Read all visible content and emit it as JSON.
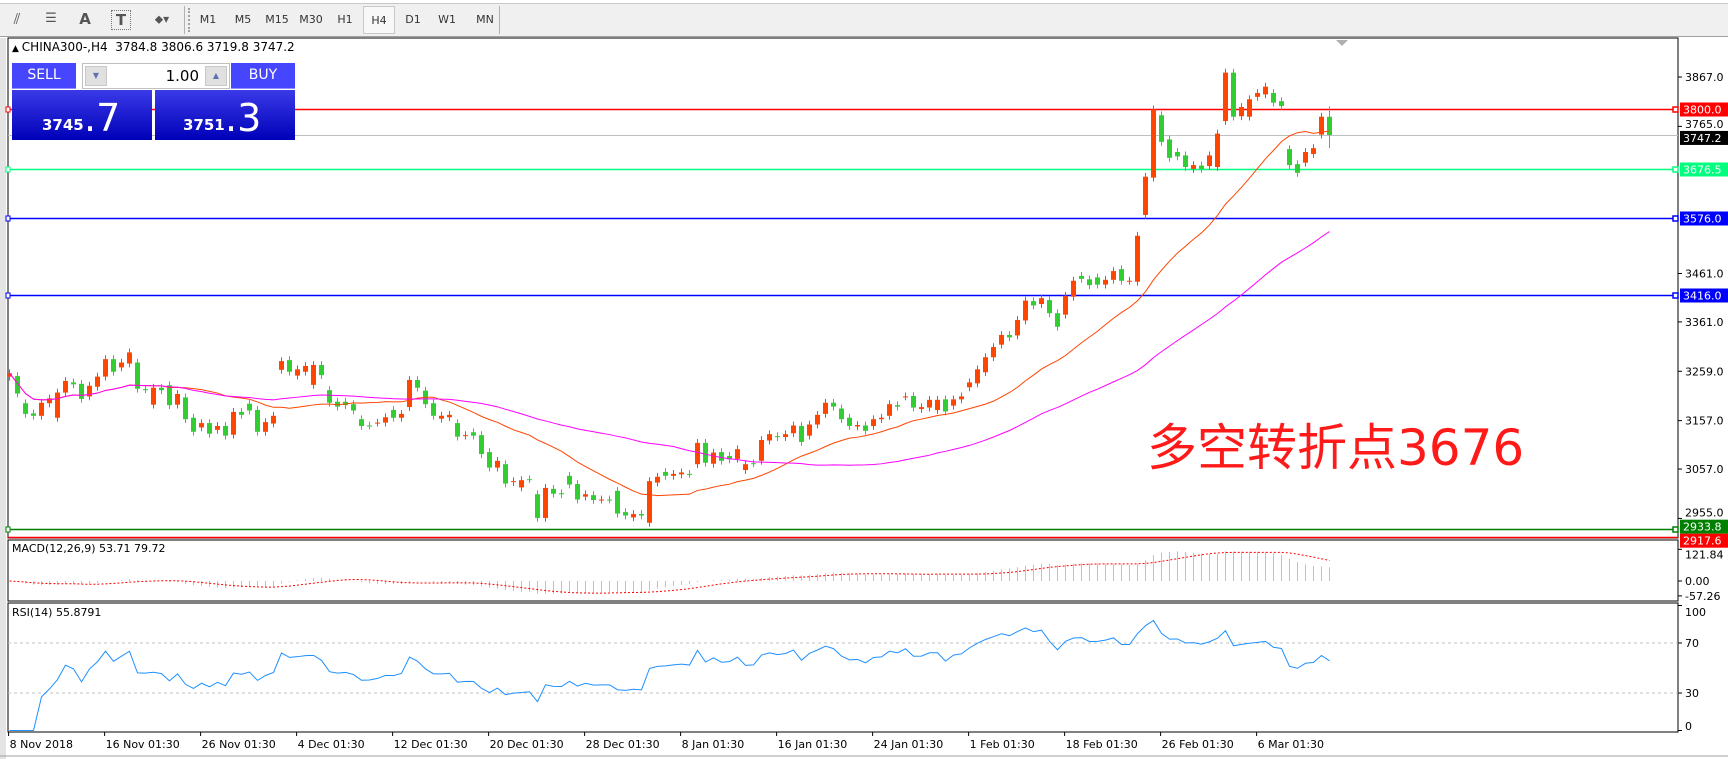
{
  "toolbar": {
    "tools": [
      {
        "icon": "fibonacci-fan-icon",
        "glyph": "⫽"
      },
      {
        "icon": "fibonacci-retracement-icon",
        "glyph": "☰"
      },
      {
        "icon": "text-icon",
        "glyph": "A"
      },
      {
        "icon": "text-label-icon",
        "glyph": "T"
      },
      {
        "icon": "arrows-dropdown-icon",
        "glyph": "⬥▾"
      }
    ],
    "timeframes": [
      "M1",
      "M5",
      "M15",
      "M30",
      "H1",
      "H4",
      "D1",
      "W1",
      "MN"
    ],
    "active_timeframe": "H4"
  },
  "header": {
    "symbol": "CHINA300-,H4",
    "ohlc": "3784.8 3806.6 3719.8 3747.2"
  },
  "trade_panel": {
    "sell_label": "SELL",
    "buy_label": "BUY",
    "lot": "1.00",
    "sell_main": "3745",
    "sell_frac": ".7",
    "buy_main": "3751",
    "buy_frac": ".3"
  },
  "annotation": "多空转折点3676",
  "colors": {
    "bull_candle": "#ff4500",
    "bear_candle": "#32cd32",
    "ma_fast": "#ff4500",
    "ma_slow": "#ff00ff",
    "macd_hist": "#c0c0c0",
    "macd_signal": "#ff0000",
    "rsi_line": "#1e90ff"
  },
  "chart_data": {
    "type": "candlestick",
    "symbol": "CHINA300-",
    "timeframe": "H4",
    "ylim": [
      2917,
      3943
    ],
    "price_ticks": [
      "3867.0",
      "3765.0",
      "3461.0",
      "3361.0",
      "3259.0",
      "3157.0",
      "3057.0",
      "2955.0"
    ],
    "time_labels": [
      "8 Nov 2018",
      "16 Nov 01:30",
      "26 Nov 01:30",
      "4 Dec 01:30",
      "12 Dec 01:30",
      "20 Dec 01:30",
      "28 Dec 01:30",
      "8 Jan 01:30",
      "16 Jan 01:30",
      "24 Jan 01:30",
      "1 Feb 01:30",
      "18 Feb 01:30",
      "26 Feb 01:30",
      "6 Mar 01:30"
    ],
    "levels": [
      {
        "price": 3800.0,
        "label": "3800.0",
        "color": "#ff0000",
        "text_color": "#ffffff"
      },
      {
        "price": 3747.2,
        "label": "3747.2",
        "color": "#c0c0c0",
        "label_bg": "#000000",
        "text_color": "#ffffff"
      },
      {
        "price": 3676.5,
        "label": "3676.5",
        "color": "#00ff7f",
        "text_color": "#ffffff"
      },
      {
        "price": 3576.0,
        "label": "3576.0",
        "color": "#0000ff",
        "text_color": "#ffffff"
      },
      {
        "price": 3416.0,
        "label": "3416.0",
        "color": "#0000ff",
        "text_color": "#ffffff"
      },
      {
        "price": 2933.8,
        "label": "2933.8",
        "color": "#008000",
        "text_color": "#ffffff"
      },
      {
        "price": 2917.6,
        "label": "2917.6",
        "color": "#ff0000",
        "text_color": "#ffffff"
      }
    ],
    "candles_open_close": [
      [
        3248,
        3255
      ],
      [
        3249,
        3213
      ],
      [
        3193,
        3171
      ],
      [
        3172,
        3167
      ],
      [
        3167,
        3194
      ],
      [
        3193,
        3203
      ],
      [
        3163,
        3215
      ],
      [
        3215,
        3239
      ],
      [
        3236,
        3232
      ],
      [
        3233,
        3202
      ],
      [
        3207,
        3229
      ],
      [
        3227,
        3248
      ],
      [
        3248,
        3284
      ],
      [
        3284,
        3258
      ],
      [
        3267,
        3277
      ],
      [
        3275,
        3298
      ],
      [
        3277,
        3223
      ],
      [
        3222,
        3222
      ],
      [
        3190,
        3225
      ],
      [
        3225,
        3220
      ],
      [
        3230,
        3189
      ],
      [
        3190,
        3212
      ],
      [
        3205,
        3160
      ],
      [
        3163,
        3134
      ],
      [
        3143,
        3152
      ],
      [
        3152,
        3130
      ],
      [
        3138,
        3146
      ],
      [
        3146,
        3126
      ],
      [
        3128,
        3175
      ],
      [
        3175,
        3169
      ],
      [
        3192,
        3178
      ],
      [
        3179,
        3134
      ],
      [
        3134,
        3154
      ],
      [
        3151,
        3167
      ],
      [
        3262,
        3280
      ],
      [
        3282,
        3258
      ],
      [
        3250,
        3263
      ],
      [
        3258,
        3270
      ],
      [
        3231,
        3272
      ],
      [
        3272,
        3251
      ],
      [
        3220,
        3194
      ],
      [
        3196,
        3186
      ],
      [
        3196,
        3189
      ],
      [
        3191,
        3178
      ],
      [
        3160,
        3146
      ],
      [
        3147,
        3147
      ],
      [
        3153,
        3153
      ],
      [
        3153,
        3164
      ],
      [
        3179,
        3163
      ],
      [
        3163,
        3171
      ],
      [
        3185,
        3241
      ],
      [
        3241,
        3225
      ],
      [
        3219,
        3191
      ],
      [
        3193,
        3167
      ],
      [
        3161,
        3167
      ],
      [
        3164,
        3169
      ],
      [
        3152,
        3124
      ],
      [
        3126,
        3127
      ],
      [
        3133,
        3126
      ],
      [
        3127,
        3088
      ],
      [
        3092,
        3060
      ],
      [
        3060,
        3074
      ],
      [
        3067,
        3027
      ],
      [
        3030,
        3032
      ],
      [
        3019,
        3034
      ],
      [
        3036,
        3036
      ],
      [
        3005,
        2956
      ],
      [
        2956,
        3018
      ],
      [
        3016,
        3006
      ],
      [
        3007,
        3005
      ],
      [
        3043,
        3025
      ],
      [
        3026,
        2994
      ],
      [
        3000,
        3005
      ],
      [
        3003,
        2993
      ],
      [
        2994,
        2994
      ],
      [
        2994,
        2994
      ],
      [
        3012,
        2965
      ],
      [
        2968,
        2961
      ],
      [
        2957,
        2964
      ],
      [
        2964,
        2961
      ],
      [
        2946,
        3032
      ],
      [
        3029,
        3041
      ],
      [
        3051,
        3043
      ],
      [
        3043,
        3047
      ],
      [
        3046,
        3050
      ],
      [
        3047,
        3047
      ],
      [
        3067,
        3111
      ],
      [
        3111,
        3070
      ],
      [
        3068,
        3091
      ],
      [
        3092,
        3074
      ],
      [
        3084,
        3077
      ],
      [
        3078,
        3098
      ],
      [
        3055,
        3067
      ],
      [
        3069,
        3069
      ],
      [
        3074,
        3117
      ],
      [
        3116,
        3129
      ],
      [
        3125,
        3123
      ],
      [
        3123,
        3129
      ],
      [
        3131,
        3147
      ],
      [
        3146,
        3113
      ],
      [
        3126,
        3149
      ],
      [
        3149,
        3169
      ],
      [
        3171,
        3194
      ],
      [
        3194,
        3186
      ],
      [
        3182,
        3160
      ],
      [
        3163,
        3146
      ],
      [
        3145,
        3148
      ],
      [
        3147,
        3136
      ],
      [
        3146,
        3160
      ],
      [
        3160,
        3163
      ],
      [
        3167,
        3191
      ],
      [
        3189,
        3186
      ],
      [
        3207,
        3207
      ],
      [
        3208,
        3184
      ],
      [
        3181,
        3185
      ],
      [
        3184,
        3200
      ],
      [
        3179,
        3200
      ],
      [
        3201,
        3176
      ],
      [
        3188,
        3201
      ],
      [
        3201,
        3207
      ],
      [
        3226,
        3236
      ],
      [
        3234,
        3263
      ],
      [
        3257,
        3288
      ],
      [
        3288,
        3309
      ],
      [
        3314,
        3334
      ],
      [
        3334,
        3329
      ],
      [
        3333,
        3365
      ],
      [
        3364,
        3405
      ],
      [
        3404,
        3395
      ],
      [
        3398,
        3410
      ],
      [
        3406,
        3379
      ],
      [
        3379,
        3351
      ],
      [
        3376,
        3415
      ],
      [
        3413,
        3446
      ],
      [
        3456,
        3450
      ],
      [
        3449,
        3437
      ],
      [
        3453,
        3438
      ],
      [
        3438,
        3448
      ],
      [
        3448,
        3466
      ],
      [
        3470,
        3446
      ],
      [
        3446,
        3446
      ],
      [
        3444,
        3539
      ],
      [
        3582,
        3661
      ],
      [
        3659,
        3800
      ],
      [
        3788,
        3733
      ],
      [
        3738,
        3700
      ],
      [
        3712,
        3703
      ],
      [
        3705,
        3681
      ],
      [
        3677,
        3685
      ],
      [
        3684,
        3677
      ],
      [
        3683,
        3705
      ],
      [
        3681,
        3750
      ],
      [
        3776,
        3876
      ],
      [
        3876,
        3785
      ],
      [
        3786,
        3805
      ],
      [
        3785,
        3821
      ],
      [
        3826,
        3834
      ],
      [
        3831,
        3847
      ],
      [
        3834,
        3814
      ],
      [
        3817,
        3807
      ],
      [
        3718,
        3685
      ],
      [
        3687,
        3669
      ],
      [
        3690,
        3712
      ],
      [
        3708,
        3720
      ],
      [
        3748,
        3785
      ],
      [
        3784.8,
        3747.2
      ]
    ],
    "last_candle": {
      "open": 3784.8,
      "high": 3806.6,
      "low": 3719.8,
      "close": 3747.2
    },
    "macd": {
      "label": "MACD(12,26,9) 53.71 79.72",
      "ticks": [
        "121.84",
        "0.00",
        "-57.26"
      ]
    },
    "rsi": {
      "label": "RSI(14) 55.8791",
      "ticks": [
        "100",
        "70",
        "30",
        "0"
      ],
      "levels": [
        70,
        30
      ]
    }
  }
}
